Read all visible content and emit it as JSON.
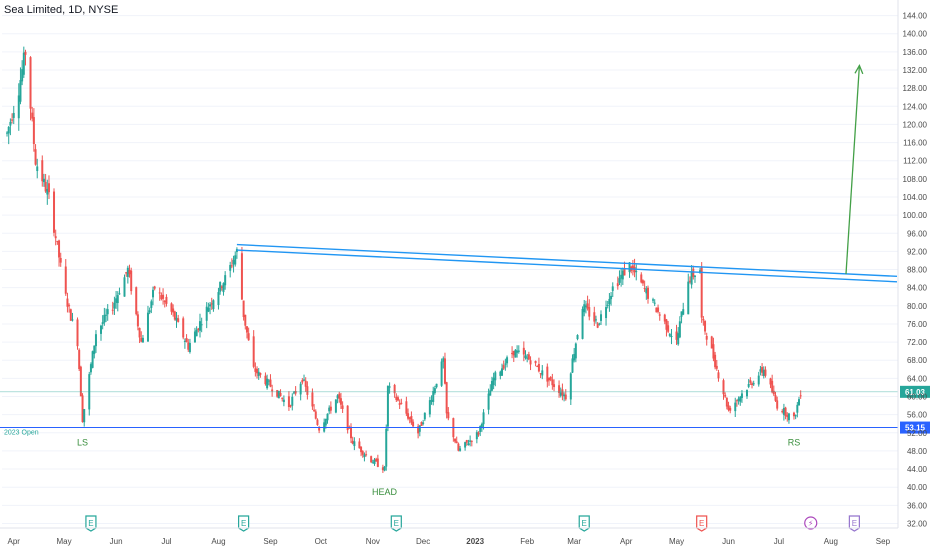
{
  "symbol_title": "Sea Limited, 1D, NYSE",
  "colors": {
    "up": "#26a69a",
    "down": "#ef5350",
    "neckline": "#2196f3",
    "open_line": "#2962ff",
    "price_line": "#26a69a",
    "target_arrow": "#43a047",
    "pattern_label": "#388e3c",
    "earnings_past": "#26a69a",
    "earnings_red": "#ef5350",
    "earnings_future": "#9575cd",
    "axis_text": "#4a4a4a",
    "grid": "#f0f3fa"
  },
  "chart_data": {
    "type": "candlestick",
    "y_axis": {
      "ticks": [
        "144.00",
        "140.00",
        "136.00",
        "132.00",
        "128.00",
        "124.00",
        "120.00",
        "116.00",
        "112.00",
        "108.00",
        "104.00",
        "100.00",
        "96.00",
        "92.00",
        "88.00",
        "84.00",
        "80.00",
        "76.00",
        "72.00",
        "68.00",
        "64.00",
        "60.00",
        "56.00",
        "52.00",
        "48.00",
        "44.00",
        "40.00",
        "36.00",
        "32.00"
      ],
      "range": [
        31,
        147
      ],
      "scale": "linear",
      "side": "right"
    },
    "x_axis": {
      "ticks": [
        "Apr",
        "May",
        "Jun",
        "Jul",
        "Aug",
        "Sep",
        "Oct",
        "Nov",
        "Dec",
        "2023",
        "Feb",
        "Mar",
        "Apr",
        "May",
        "Jun",
        "Jul",
        "Aug",
        "Sep"
      ],
      "range": [
        "2022-03-25",
        "2023-09-10"
      ]
    },
    "last_price": {
      "value": 61.03,
      "label": "61.03"
    },
    "open_2023": {
      "value": 53.15,
      "label": "53.15",
      "text": "2023 Open"
    },
    "price_path": [
      [
        "2022-03-28",
        118
      ],
      [
        "2022-04-04",
        128
      ],
      [
        "2022-04-08",
        136
      ],
      [
        "2022-04-14",
        112
      ],
      [
        "2022-04-22",
        104
      ],
      [
        "2022-05-02",
        82
      ],
      [
        "2022-05-09",
        72
      ],
      [
        "2022-05-12",
        55
      ],
      [
        "2022-05-20",
        74
      ],
      [
        "2022-05-30",
        80
      ],
      [
        "2022-06-08",
        88
      ],
      [
        "2022-06-16",
        72
      ],
      [
        "2022-06-24",
        84
      ],
      [
        "2022-07-05",
        78
      ],
      [
        "2022-07-14",
        71
      ],
      [
        "2022-07-26",
        80
      ],
      [
        "2022-08-05",
        86
      ],
      [
        "2022-08-12",
        92
      ],
      [
        "2022-08-16",
        78
      ],
      [
        "2022-08-22",
        66
      ],
      [
        "2022-09-02",
        62
      ],
      [
        "2022-09-12",
        58
      ],
      [
        "2022-09-20",
        64
      ],
      [
        "2022-09-30",
        53
      ],
      [
        "2022-10-11",
        60
      ],
      [
        "2022-10-20",
        50
      ],
      [
        "2022-10-31",
        46
      ],
      [
        "2022-11-08",
        44
      ],
      [
        "2022-11-10",
        62
      ],
      [
        "2022-11-18",
        58
      ],
      [
        "2022-11-28",
        52
      ],
      [
        "2022-12-06",
        60
      ],
      [
        "2022-12-13",
        68
      ],
      [
        "2022-12-15",
        56
      ],
      [
        "2022-12-22",
        48
      ],
      [
        "2023-01-03",
        52
      ],
      [
        "2023-01-12",
        64
      ],
      [
        "2023-01-24",
        70
      ],
      [
        "2023-02-03",
        68
      ],
      [
        "2023-02-13",
        64
      ],
      [
        "2023-02-24",
        60
      ],
      [
        "2023-03-06",
        80
      ],
      [
        "2023-03-15",
        76
      ],
      [
        "2023-03-24",
        84
      ],
      [
        "2023-04-03",
        89
      ],
      [
        "2023-04-13",
        83
      ],
      [
        "2023-04-21",
        78
      ],
      [
        "2023-05-01",
        72
      ],
      [
        "2023-05-08",
        86
      ],
      [
        "2023-05-15",
        88
      ],
      [
        "2023-05-16",
        77
      ],
      [
        "2023-05-22",
        70
      ],
      [
        "2023-06-01",
        57
      ],
      [
        "2023-06-12",
        62
      ],
      [
        "2023-06-22",
        66
      ],
      [
        "2023-06-30",
        58
      ],
      [
        "2023-07-10",
        55
      ],
      [
        "2023-07-14",
        61
      ]
    ],
    "annotations": {
      "neckline": {
        "label": "",
        "upper": [
          [
            "2022-08-12",
            93.5
          ],
          [
            "2023-09-10",
            86.5
          ]
        ],
        "lower": [
          [
            "2022-08-12",
            92.3
          ],
          [
            "2023-09-10",
            85.3
          ]
        ]
      },
      "target_arrow": {
        "from": [
          "2023-08-10",
          87
        ],
        "to": [
          "2023-08-18",
          133
        ]
      },
      "labels": [
        {
          "text": "LS",
          "date": "2022-05-12",
          "value": 51
        },
        {
          "text": "HEAD",
          "date": "2022-11-08",
          "value": 40
        },
        {
          "text": "RS",
          "date": "2023-07-10",
          "value": 51
        }
      ],
      "earnings_markers": [
        {
          "text": "E",
          "date": "2022-05-17",
          "kind": "past"
        },
        {
          "text": "E",
          "date": "2022-08-16",
          "kind": "past"
        },
        {
          "text": "E",
          "date": "2022-11-15",
          "kind": "past"
        },
        {
          "text": "E",
          "date": "2023-03-07",
          "kind": "past"
        },
        {
          "text": "E",
          "date": "2023-05-16",
          "kind": "red"
        },
        {
          "text": "⚡",
          "date": "2023-07-20",
          "kind": "lightning"
        },
        {
          "text": "E",
          "date": "2023-08-15",
          "kind": "future"
        }
      ]
    }
  }
}
